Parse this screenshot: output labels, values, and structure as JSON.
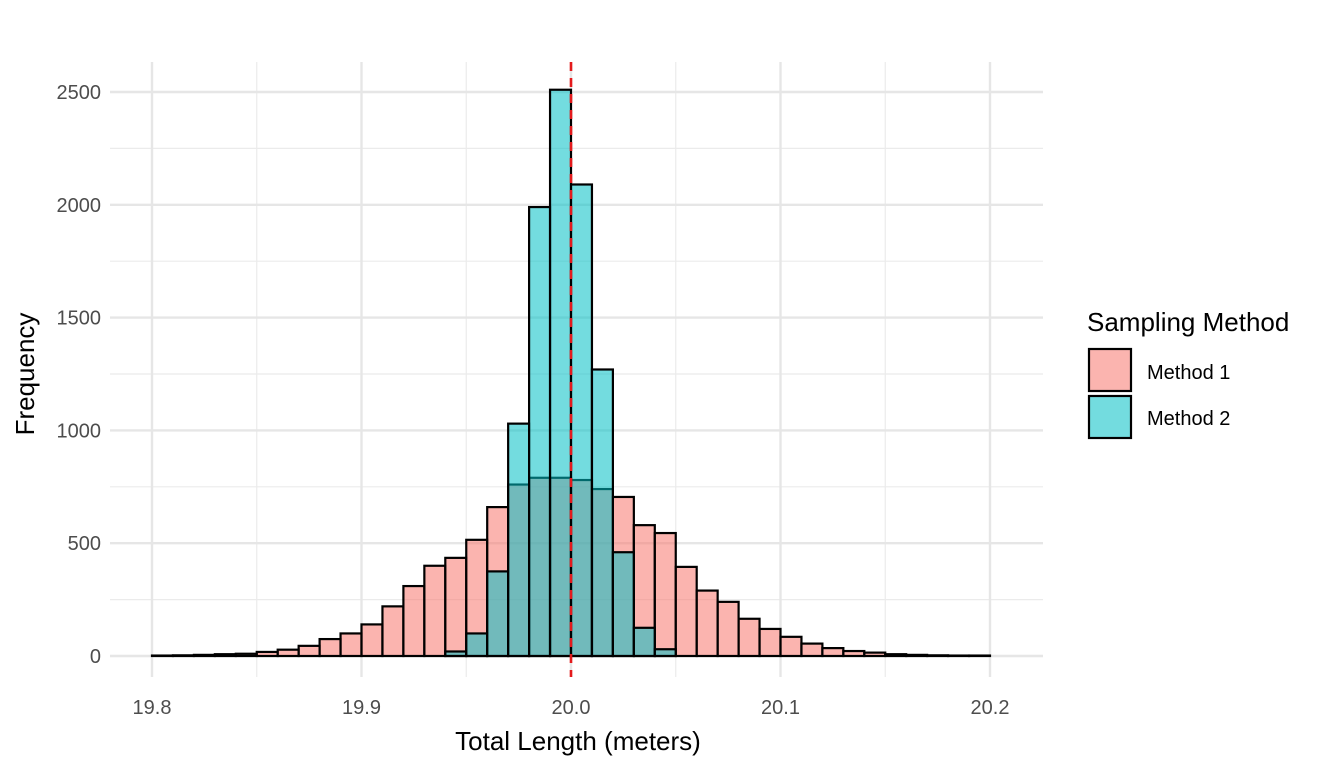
{
  "chart_data": {
    "type": "histogram",
    "title": "",
    "xlabel": "Total Length (meters)",
    "ylabel": "Frequency",
    "xlim": [
      19.8,
      20.2
    ],
    "ylim": [
      0,
      2500
    ],
    "x_ticks": [
      "19.8",
      "19.9",
      "20.0",
      "20.1",
      "20.2"
    ],
    "y_ticks": [
      "0",
      "500",
      "1000",
      "1500",
      "2000",
      "2500"
    ],
    "bin_width": 0.01,
    "bin_starts": [
      19.8,
      19.81,
      19.82,
      19.83,
      19.84,
      19.85,
      19.86,
      19.87,
      19.88,
      19.89,
      19.9,
      19.91,
      19.92,
      19.93,
      19.94,
      19.95,
      19.96,
      19.97,
      19.98,
      19.99,
      20.0,
      20.01,
      20.02,
      20.03,
      20.04,
      20.05,
      20.06,
      20.07,
      20.08,
      20.09,
      20.1,
      20.11,
      20.12,
      20.13,
      20.14,
      20.15,
      20.16,
      20.17,
      20.18,
      20.19
    ],
    "series": [
      {
        "name": "Method 1",
        "color": "#F8766D",
        "values": [
          2,
          3,
          5,
          8,
          10,
          18,
          28,
          45,
          75,
          100,
          140,
          220,
          310,
          400,
          435,
          515,
          660,
          760,
          790,
          790,
          780,
          740,
          705,
          580,
          545,
          395,
          290,
          240,
          165,
          120,
          85,
          55,
          35,
          22,
          15,
          8,
          5,
          3,
          2,
          2
        ]
      },
      {
        "name": "Method 2",
        "color": "#00BFC4",
        "values": [
          0,
          0,
          0,
          0,
          0,
          0,
          0,
          0,
          0,
          0,
          0,
          0,
          0,
          0,
          20,
          100,
          375,
          1030,
          1990,
          2510,
          2090,
          1270,
          460,
          125,
          30,
          0,
          0,
          0,
          0,
          0,
          0,
          0,
          0,
          0,
          0,
          0,
          0,
          0,
          0,
          0
        ]
      }
    ],
    "reference_line": {
      "x": 20.0,
      "color": "#E41A1C",
      "style": "dashed"
    },
    "legend": {
      "title": "Sampling Method",
      "position": "right"
    },
    "grid": true
  }
}
